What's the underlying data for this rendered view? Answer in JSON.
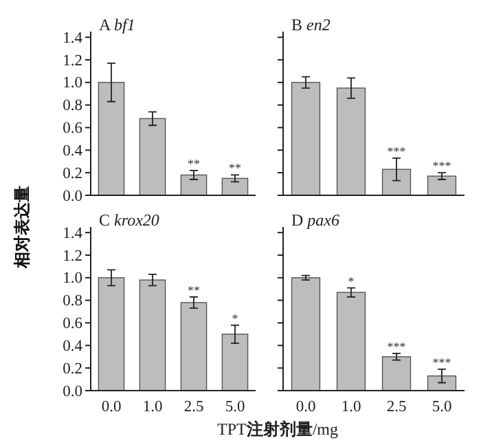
{
  "chart_data": [
    {
      "type": "bar",
      "title": "A *bf1*",
      "ylabel": "相对表达量",
      "categories": [
        "0.0",
        "1.0",
        "2.5",
        "5.0"
      ],
      "values": [
        1.0,
        0.68,
        0.18,
        0.15
      ],
      "errors": [
        0.17,
        0.06,
        0.04,
        0.03
      ],
      "color": "#bdbdbd",
      "ylim": [
        0,
        1.45
      ],
      "yticks": [
        {
          "value": 0,
          "label": "0.0"
        },
        {
          "value": 0.2,
          "label": "0.2"
        },
        {
          "value": 0.4,
          "label": "0.4"
        },
        {
          "value": 0.6,
          "label": "0.6"
        },
        {
          "value": 0.8,
          "label": "0.8"
        },
        {
          "value": 1.0,
          "label": "1.0"
        },
        {
          "value": 1.2,
          "label": "1.2"
        },
        {
          "value": 1.4,
          "label": "1.4"
        }
      ],
      "tick_labels": "y",
      "annotations": [
        {
          "text": "**",
          "x": "2.5",
          "y": 0.22
        },
        {
          "text": "**",
          "x": "5.0",
          "y": 0.18
        }
      ]
    },
    {
      "type": "bar",
      "title": "B *en2*",
      "categories": [
        "0.0",
        "1.0",
        "2.5",
        "5.0"
      ],
      "values": [
        1.0,
        0.95,
        0.23,
        0.17
      ],
      "errors": [
        0.05,
        0.09,
        0.1,
        0.03
      ],
      "color": "#bdbdbd",
      "ylim": [
        0,
        1.45
      ],
      "yticks": [
        {
          "value": 0,
          "label": null
        },
        {
          "value": 0.2,
          "label": null
        },
        {
          "value": 0.4,
          "label": null
        },
        {
          "value": 0.6,
          "label": null
        },
        {
          "value": 0.8,
          "label": null
        },
        {
          "value": 1.0,
          "label": null
        },
        {
          "value": 1.2,
          "label": null
        },
        {
          "value": 1.4,
          "label": null
        }
      ],
      "tick_labels": false,
      "annotations": [
        {
          "text": "***",
          "x": "2.5",
          "y": 0.33
        },
        {
          "text": "***",
          "x": "5.0",
          "y": 0.2
        }
      ]
    },
    {
      "type": "bar",
      "title": "C *krox20*",
      "xlabel": "TPT**注射剂量**/mg",
      "categories": [
        "0.0",
        "1.0",
        "2.5",
        "5.0"
      ],
      "values": [
        1.0,
        0.98,
        0.78,
        0.5
      ],
      "errors": [
        0.07,
        0.05,
        0.05,
        0.08
      ],
      "color": "#bdbdbd",
      "ylim": [
        0,
        1.45
      ],
      "yticks": [
        {
          "value": 0,
          "label": "0.0"
        },
        {
          "value": 0.2,
          "label": "0.2"
        },
        {
          "value": 0.4,
          "label": "0.4"
        },
        {
          "value": 0.6,
          "label": "0.6"
        },
        {
          "value": 0.8,
          "label": "0.8"
        },
        {
          "value": 1.0,
          "label": "1.0"
        },
        {
          "value": 1.2,
          "label": "1.2"
        },
        {
          "value": 1.4,
          "label": "1.4"
        }
      ],
      "annotations": [
        {
          "text": "**",
          "x": "2.5",
          "y": 0.83
        },
        {
          "text": "*",
          "x": "5.0",
          "y": 0.58
        }
      ]
    },
    {
      "type": "bar",
      "title": "D *pax6*",
      "categories": [
        "0.0",
        "1.0",
        "2.5",
        "5.0"
      ],
      "values": [
        1.0,
        0.87,
        0.3,
        0.13
      ],
      "errors": [
        0.02,
        0.04,
        0.03,
        0.06
      ],
      "color": "#bdbdbd",
      "ylim": [
        0,
        1.45
      ],
      "yticks": [
        {
          "value": 0,
          "label": null
        },
        {
          "value": 0.2,
          "label": null
        },
        {
          "value": 0.4,
          "label": null
        },
        {
          "value": 0.6,
          "label": null
        },
        {
          "value": 0.8,
          "label": null
        },
        {
          "value": 1.0,
          "label": null
        },
        {
          "value": 1.2,
          "label": null
        },
        {
          "value": 1.4,
          "label": null
        }
      ],
      "tick_labels": "x",
      "annotations": [
        {
          "text": "*",
          "x": "1.0",
          "y": 0.91
        },
        {
          "text": "***",
          "x": "2.5",
          "y": 0.33
        },
        {
          "text": "***",
          "x": "5.0",
          "y": 0.19
        }
      ]
    }
  ]
}
